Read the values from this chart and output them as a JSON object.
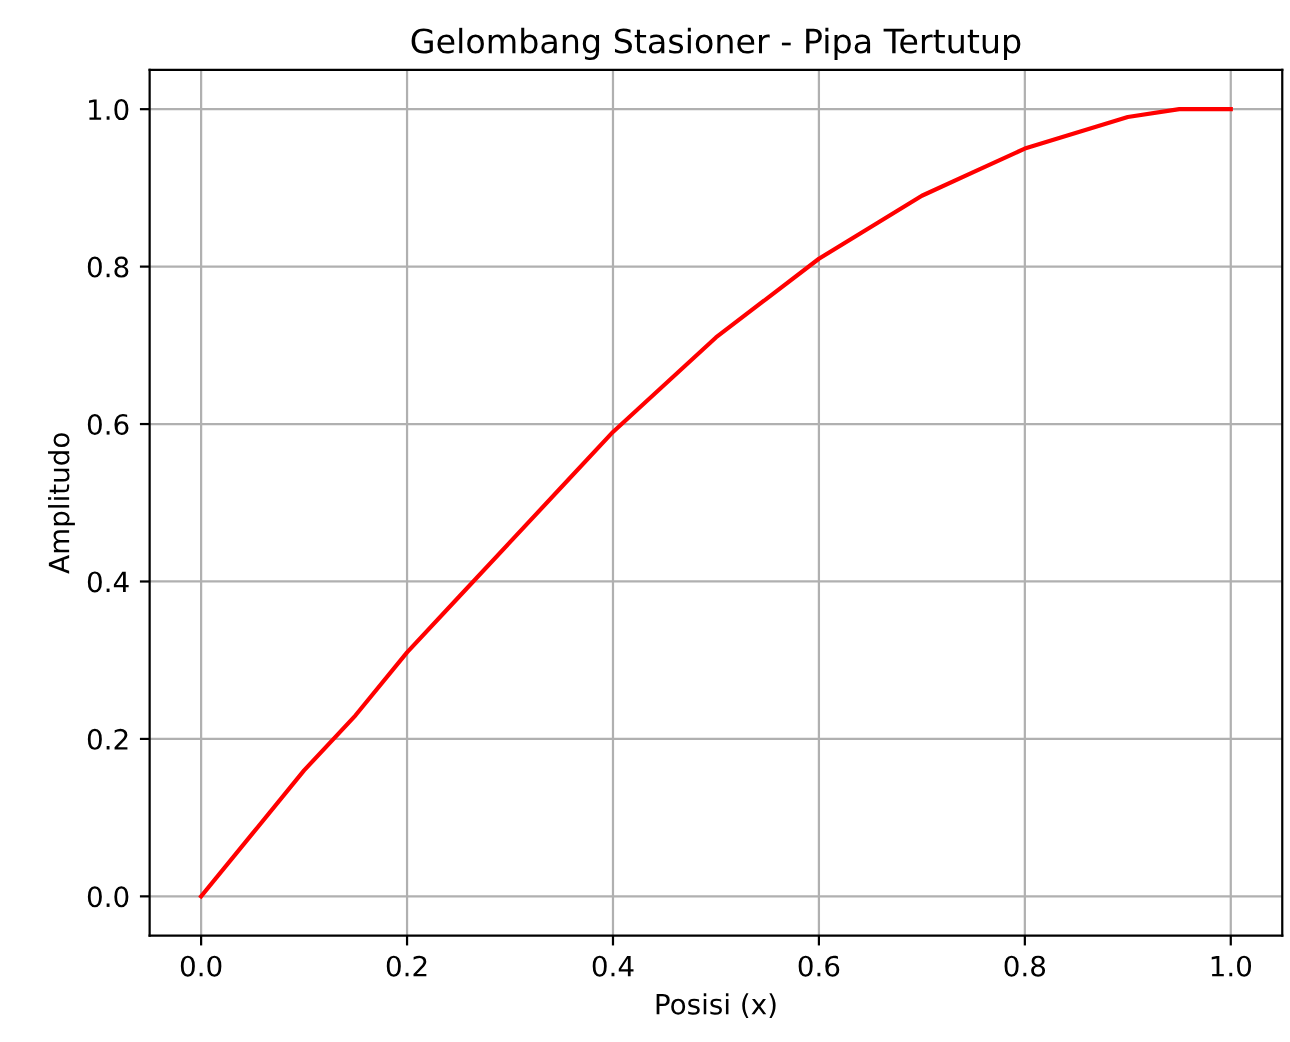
{
  "chart_data": {
    "type": "line",
    "title": "Gelombang Stasioner - Pipa Tertutup",
    "xlabel": "Posisi (x)",
    "ylabel": "Amplitudo",
    "x": [
      0,
      0.05,
      0.1,
      0.15,
      0.2,
      0.25,
      0.3,
      0.35,
      0.4,
      0.45,
      0.5,
      0.55,
      0.6,
      0.65,
      0.7,
      0.75,
      0.8,
      0.85,
      0.9,
      0.95,
      1.0
    ],
    "series": [
      {
        "color": "#ff0000",
        "values": [
          0,
          0.08,
          0.16,
          0.23,
          0.31,
          0.38,
          0.45,
          0.52,
          0.59,
          0.65,
          0.71,
          0.76,
          0.81,
          0.85,
          0.89,
          0.92,
          0.95,
          0.97,
          0.99,
          1.0,
          1.0
        ]
      }
    ],
    "xlim": [
      -0.05,
      1.05
    ],
    "ylim": [
      -0.05,
      1.05
    ],
    "xticks": [
      {
        "value": 0,
        "label": "0.0"
      },
      0.2,
      0.4,
      0.6,
      0.8,
      {
        "value": 1,
        "label": "1.0"
      }
    ],
    "yticks": [
      {
        "value": 0,
        "label": "0.0"
      },
      0.2,
      0.4,
      0.6,
      0.8,
      {
        "value": 1,
        "label": "1.0"
      }
    ],
    "grid": true,
    "line_style": "solid"
  }
}
